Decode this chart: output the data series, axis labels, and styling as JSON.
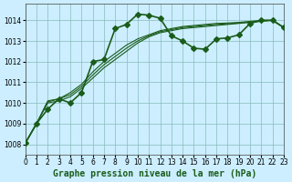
{
  "title": "Graphe pression niveau de la mer (hPa)",
  "background_color": "#cceeff",
  "grid_color": "#88bbbb",
  "line_color": "#1a5c1a",
  "xlim": [
    0,
    23
  ],
  "ylim": [
    1007.5,
    1014.8
  ],
  "yticks": [
    1008,
    1009,
    1010,
    1011,
    1012,
    1013,
    1014
  ],
  "xticks": [
    0,
    1,
    2,
    3,
    4,
    5,
    6,
    7,
    8,
    9,
    10,
    11,
    12,
    13,
    14,
    15,
    16,
    17,
    18,
    19,
    20,
    21,
    22,
    23
  ],
  "series": [
    {
      "x": [
        0,
        1,
        2,
        3,
        4,
        5,
        6,
        7,
        8,
        9,
        10,
        11,
        12,
        13,
        14,
        15,
        16,
        17,
        18,
        19,
        20,
        21,
        22,
        23
      ],
      "y": [
        1008.05,
        1009.0,
        1009.7,
        1010.2,
        1010.0,
        1010.5,
        1012.0,
        1012.1,
        1013.6,
        1013.8,
        1014.3,
        1014.25,
        1014.1,
        1013.25,
        1013.0,
        1012.65,
        1012.6,
        1013.1,
        1013.15,
        1013.3,
        1013.85,
        1014.0,
        1014.0,
        1013.65
      ],
      "marker": "D",
      "markersize": 3,
      "linewidth": 1.2
    },
    {
      "x": [
        0,
        1,
        2,
        3,
        4,
        5,
        6,
        7,
        8,
        9,
        10,
        11,
        12,
        13,
        14,
        15,
        16,
        17,
        18,
        19,
        20,
        21,
        22,
        23
      ],
      "y": [
        1008.05,
        1009.0,
        1010.1,
        1010.2,
        1010.5,
        1010.9,
        1011.5,
        1012.0,
        1012.4,
        1012.8,
        1013.1,
        1013.3,
        1013.5,
        1013.6,
        1013.7,
        1013.75,
        1013.8,
        1013.85,
        1013.87,
        1013.9,
        1013.95,
        1014.0,
        1014.0,
        1013.65
      ],
      "marker": null,
      "markersize": 0,
      "linewidth": 0.8
    },
    {
      "x": [
        0,
        1,
        2,
        3,
        4,
        5,
        6,
        7,
        8,
        9,
        10,
        11,
        12,
        13,
        14,
        15,
        16,
        17,
        18,
        19,
        20,
        21,
        22,
        23
      ],
      "y": [
        1008.05,
        1009.0,
        1010.0,
        1010.1,
        1010.3,
        1010.7,
        1011.2,
        1011.7,
        1012.1,
        1012.5,
        1012.9,
        1013.2,
        1013.4,
        1013.5,
        1013.6,
        1013.65,
        1013.7,
        1013.75,
        1013.8,
        1013.85,
        1013.9,
        1013.95,
        1014.0,
        1013.65
      ],
      "marker": null,
      "markersize": 0,
      "linewidth": 0.8
    },
    {
      "x": [
        0,
        1,
        2,
        3,
        4,
        5,
        6,
        7,
        8,
        9,
        10,
        11,
        12,
        13,
        14,
        15,
        16,
        17,
        18,
        19,
        20,
        21,
        22,
        23
      ],
      "y": [
        1008.05,
        1009.0,
        1010.05,
        1010.2,
        1010.4,
        1010.8,
        1011.35,
        1011.85,
        1012.25,
        1012.65,
        1013.0,
        1013.25,
        1013.45,
        1013.55,
        1013.65,
        1013.7,
        1013.75,
        1013.8,
        1013.83,
        1013.87,
        1013.92,
        1013.97,
        1014.0,
        1013.65
      ],
      "marker": null,
      "markersize": 0,
      "linewidth": 0.8
    }
  ],
  "tick_fontsize": 5.5,
  "title_fontsize": 7
}
